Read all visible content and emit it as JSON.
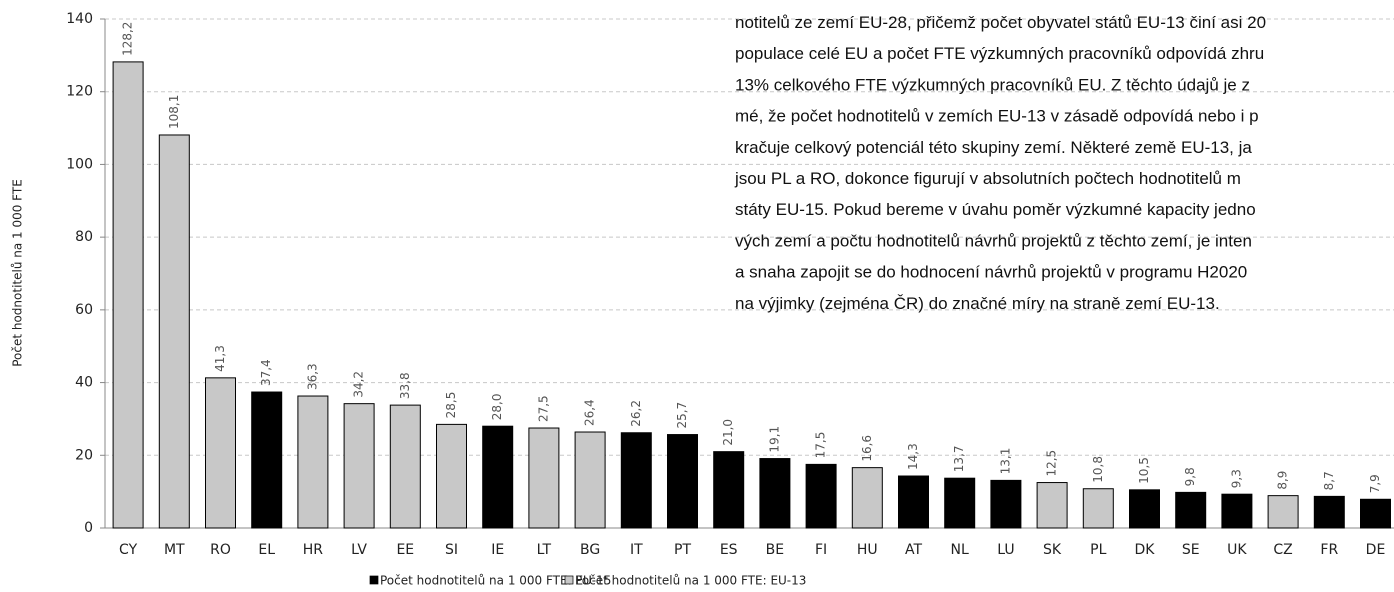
{
  "chart_data": {
    "type": "bar",
    "y_label": "Počet hodnotitelů na 1 000 FTE",
    "categories": [
      "CY",
      "MT",
      "RO",
      "EL",
      "HR",
      "LV",
      "EE",
      "SI",
      "IE",
      "LT",
      "BG",
      "IT",
      "PT",
      "ES",
      "BE",
      "FI",
      "HU",
      "AT",
      "NL",
      "LU",
      "SK",
      "PL",
      "DK",
      "SE",
      "UK",
      "CZ",
      "FR",
      "DE"
    ],
    "series": [
      {
        "name": "Počet hodnotitelů na 1 000 FTE: EU-15",
        "color": "#000000",
        "values": [
          null,
          null,
          null,
          37.4,
          null,
          null,
          null,
          null,
          28.0,
          null,
          null,
          26.2,
          25.7,
          21.0,
          19.1,
          17.5,
          null,
          14.3,
          13.7,
          13.1,
          null,
          null,
          10.5,
          9.8,
          9.3,
          null,
          8.7,
          7.9
        ],
        "value_labels": [
          null,
          null,
          null,
          "37,4",
          null,
          null,
          null,
          null,
          "28,0",
          null,
          null,
          "26,2",
          "25,7",
          "21,0",
          "19,1",
          "17,5",
          null,
          "14,3",
          "13,7",
          "13,1",
          null,
          null,
          "10,5",
          "9,8",
          "9,3",
          null,
          "8,7",
          "7,9"
        ]
      },
      {
        "name": "Počet hodnotitelů na 1 000 FTE: EU-13",
        "color": "#c8c8c8",
        "values": [
          128.2,
          108.1,
          41.3,
          null,
          36.3,
          34.2,
          33.8,
          28.5,
          null,
          27.5,
          26.4,
          null,
          null,
          null,
          null,
          null,
          16.6,
          null,
          null,
          null,
          12.5,
          10.8,
          null,
          null,
          null,
          8.9,
          null,
          null
        ],
        "value_labels": [
          "128,2",
          "108,1",
          "41,3",
          null,
          "36,3",
          "34,2",
          "33,8",
          "28,5",
          null,
          "27,5",
          "26,4",
          null,
          null,
          null,
          null,
          null,
          "16,6",
          null,
          null,
          null,
          "12,5",
          "10,8",
          null,
          null,
          null,
          "8,9",
          null,
          null
        ]
      }
    ],
    "ylim": [
      0,
      140
    ],
    "yticks": [
      0,
      20,
      40,
      60,
      80,
      100,
      120,
      140
    ],
    "grid": true,
    "legend": "bottom",
    "overlay_text": [
      "notitelů ze zemí EU-28, přičemž počet obyvatel států EU-13 činí asi 20",
      "populace celé EU a počet FTE výzkumných pracovníků odpovídá zhru",
      "13% celkového FTE výzkumných pracovníků EU. Z těchto údajů je z",
      "mé, že počet hodnotitelů v zemích EU-13 v zásadě odpovídá nebo i p",
      "kračuje celkový potenciál této skupiny zemí. Některé země EU-13, ja",
      "jsou PL a RO, dokonce figurují v absolutních počtech hodnotitelů m",
      "státy EU-15. Pokud bereme v úvahu poměr výzkumné kapacity jedno",
      "vých zemí a počtu hodnotitelů návrhů projektů z těchto zemí, je inten",
      "a snaha zapojit se do hodnocení návrhů projektů v programu H2020",
      "na výjimky (zejména ČR) do značné míry na straně zemí EU-13."
    ]
  }
}
